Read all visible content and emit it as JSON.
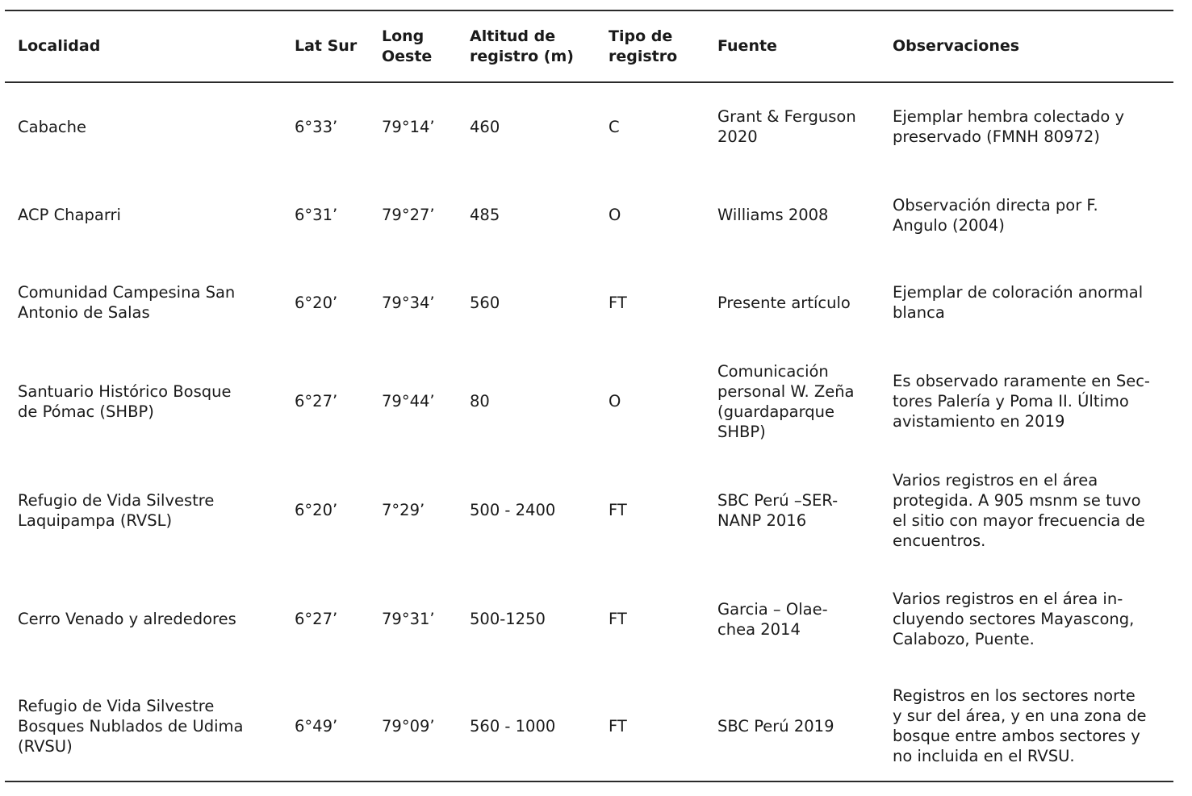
{
  "table": {
    "headers": [
      "Localidad",
      "Lat Sur",
      "Long\nOeste",
      "Altitud de\nregistro (m)",
      "Tipo de\nregistro",
      "Fuente",
      "Observaciones"
    ],
    "rows": [
      [
        "Cabache",
        "6°33’",
        "79°14’",
        "460",
        "C",
        "Grant & Ferguson\n2020",
        "Ejemplar hembra colectado y\npreservado (FMNH 80972)"
      ],
      [
        "ACP Chaparri",
        "6°31’",
        "79°27’",
        "485",
        "O",
        "Williams 2008",
        "Observación directa por F.\nAngulo (2004)"
      ],
      [
        "Comunidad Campesina San\nAntonio de Salas",
        "6°20’",
        "79°34’",
        "560",
        "FT",
        "Presente artículo",
        "Ejemplar de coloración anormal\nblanca"
      ],
      [
        "Santuario Histórico Bosque\nde Pómac (SHBP)",
        "6°27’",
        "79°44’",
        "80",
        "O",
        "Comunicación\npersonal W. Zeña\n(guardaparque\nSHBP)",
        "Es observado raramente en Sec-\ntores Palería y Poma II. Último\navistamiento en 2019"
      ],
      [
        "Refugio de Vida Silvestre\nLaquipampa (RVSL)",
        "6°20’",
        "7°29’",
        "500 - 2400",
        "FT",
        "SBC Perú –SER-\nNANP 2016",
        "Varios registros en el área\nprotegida. A 905 msnm se tuvo\nel sitio con mayor frecuencia de\nencuentros."
      ],
      [
        "Cerro Venado y alrededores",
        "6°27’",
        "79°31’",
        "500-1250",
        "FT",
        "Garcia – Olae-\nchea 2014",
        "Varios registros en el área in-\ncluyendo sectores Mayascong,\nCalabozo, Puente."
      ],
      [
        "Refugio de Vida Silvestre\nBosques Nublados de Udima\n(RVSU)",
        "6°49’",
        "79°09’",
        "560 - 1000",
        "FT",
        "SBC Perú 2019",
        "Registros en los sectores norte\ny sur del área, y en una zona de\nbosque entre ambos sectores y\nno incluida en el RVSU."
      ]
    ]
  }
}
